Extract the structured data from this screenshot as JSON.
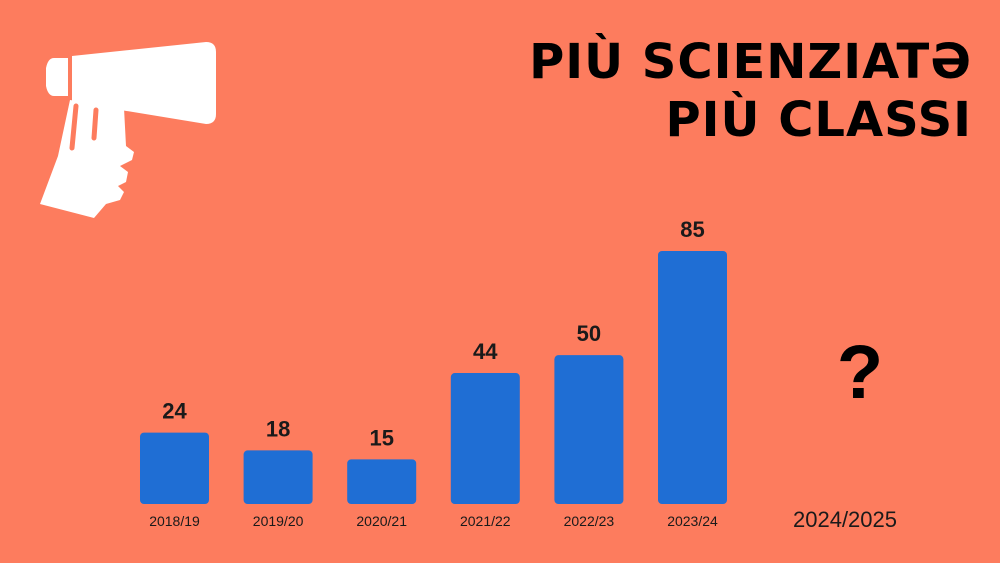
{
  "title": {
    "line1": "Più Scienziatə",
    "line2": "Più Classi"
  },
  "logo": {
    "icon": "hand-holding-megaphone-icon",
    "color": "#FFFFFF"
  },
  "chart_data": {
    "type": "bar",
    "categories": [
      "2018/19",
      "2019/20",
      "2020/21",
      "2021/22",
      "2022/23",
      "2023/24"
    ],
    "values": [
      24,
      18,
      15,
      44,
      50,
      85
    ],
    "bar_color": "#1F6ED4",
    "background_color": "#FD7C5E",
    "future_category": "2024/2025",
    "future_value_label": "?",
    "grid": false,
    "legend": "none",
    "data_labels": true
  }
}
